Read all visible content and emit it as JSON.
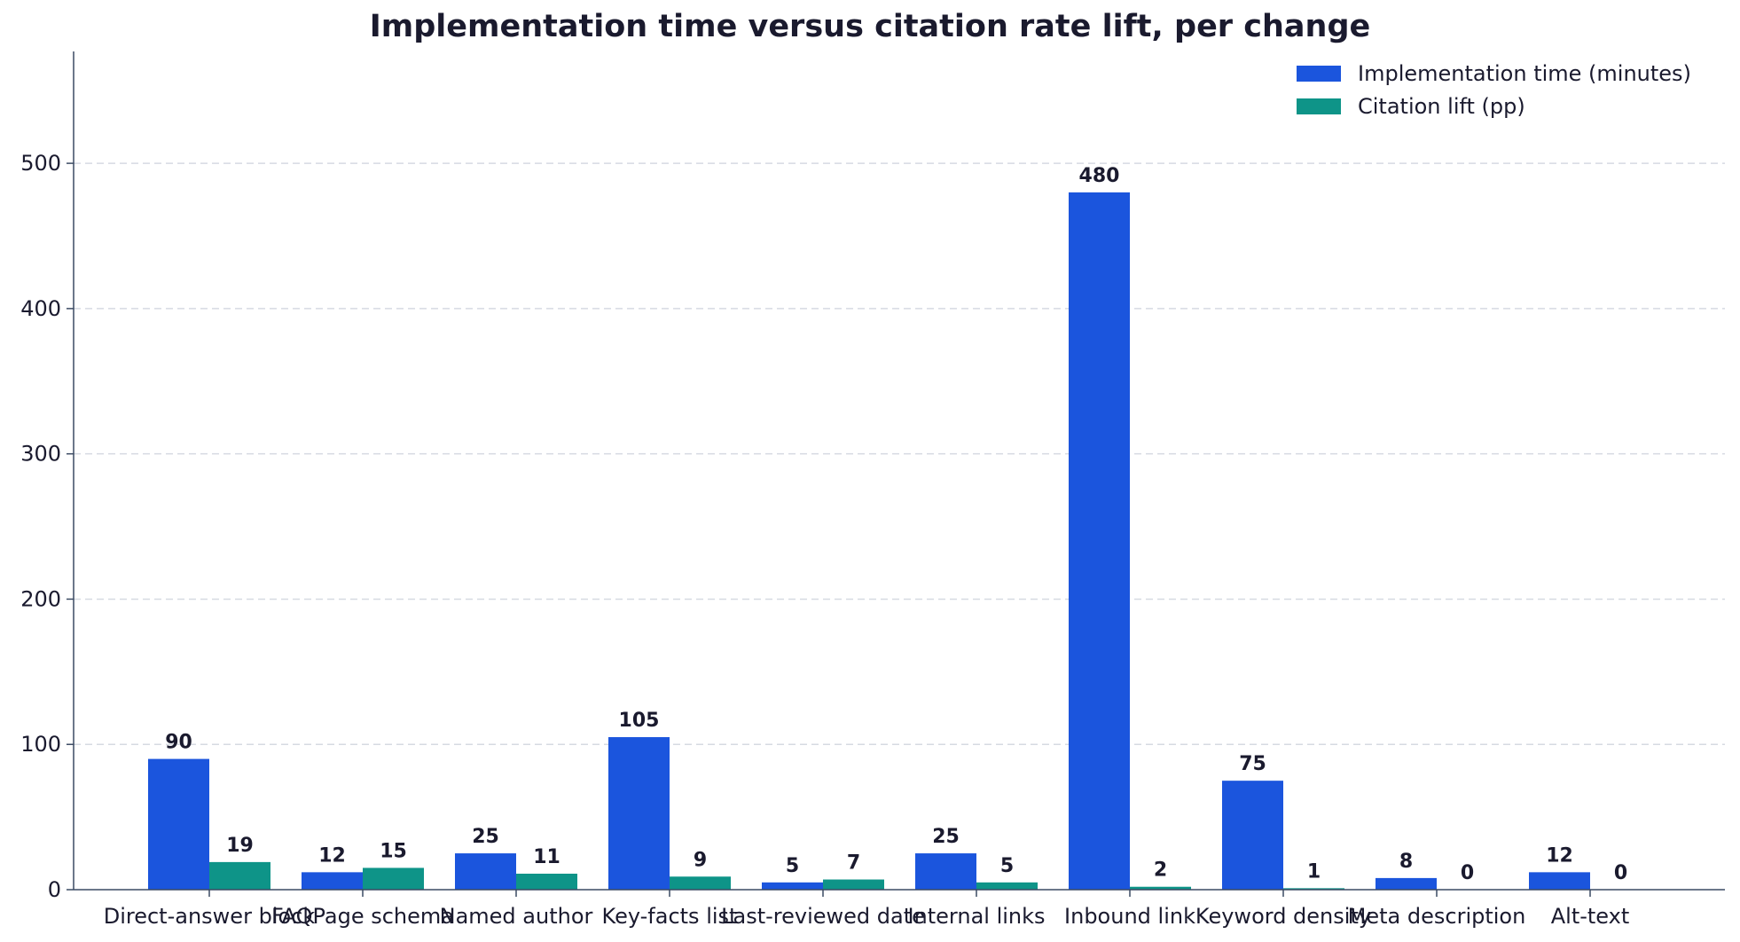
{
  "chart_data": {
    "type": "bar",
    "title": "Implementation time versus citation rate lift, per change",
    "xlabel": "",
    "ylabel": "",
    "categories": [
      "Direct-answer block",
      "FAQPage schema",
      "Named author",
      "Key-facts list",
      "Last-reviewed date",
      "Internal links",
      "Inbound link",
      "Keyword density",
      "Meta description",
      "Alt-text"
    ],
    "series": [
      {
        "name": "Implementation time (minutes)",
        "color": "#1b55dd",
        "values": [
          90,
          12,
          25,
          105,
          5,
          25,
          480,
          75,
          8,
          12
        ]
      },
      {
        "name": "Citation lift (pp)",
        "color": "#0e9488",
        "values": [
          19,
          15,
          11,
          9,
          7,
          5,
          2,
          1,
          0,
          0
        ]
      }
    ],
    "ylim": [
      0,
      577
    ],
    "yticks": [
      0,
      100,
      200,
      300,
      400,
      500
    ],
    "grid": "y-dashed",
    "legend": "top-right"
  }
}
